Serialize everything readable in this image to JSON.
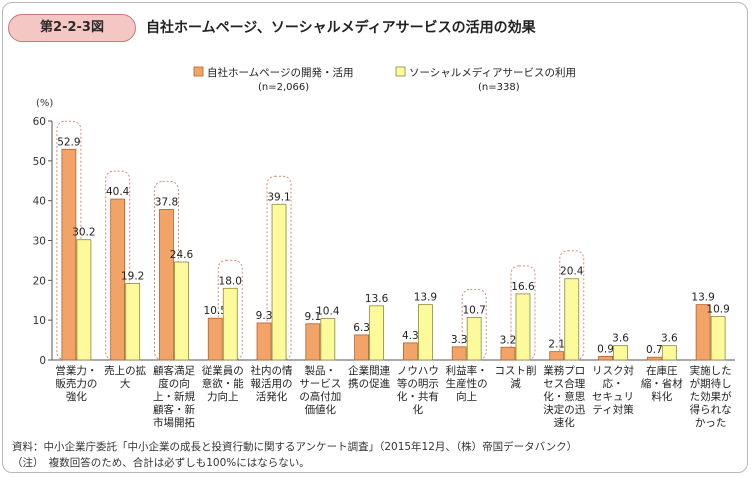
{
  "header": {
    "figure_label": "第2-2-3図",
    "title": "自社ホームページ、ソーシャルメディアサービスの活用の効果"
  },
  "footer": {
    "source": "資料：中小企業庁委託「中小企業の成長と投資行動に関するアンケート調査」（2015年12月、（株）帝国データバンク）",
    "note": "（注）　複数回答のため、合計は必ずしも100%にはならない。"
  },
  "colors": {
    "series1": "#f2a468",
    "series1_stroke": "#b0622a",
    "series2": "#fdfa9c",
    "series2_stroke": "#8a8a3a",
    "highlight": "#d88a78"
  },
  "chart_data": {
    "type": "bar",
    "yunit": "(%)",
    "ylim": [
      0,
      60
    ],
    "yticks": [
      "0",
      "10",
      "20",
      "30",
      "40",
      "50",
      "60"
    ],
    "categories": [
      [
        "営業力・",
        "販売力の",
        "強化"
      ],
      [
        "売上の拡",
        "大"
      ],
      [
        "顧客満足",
        "度の向",
        "上・新規",
        "顧客・新",
        "市場開拓"
      ],
      [
        "従業員の",
        "意欲・能",
        "力向上"
      ],
      [
        "社内の情",
        "報活用の",
        "活発化"
      ],
      [
        "製品・",
        "サービス",
        "の高付加",
        "価値化"
      ],
      [
        "企業間連",
        "携の促進"
      ],
      [
        "ノウハウ",
        "等の明示",
        "化・共有",
        "化"
      ],
      [
        "利益率・",
        "生産性の",
        "向上"
      ],
      [
        "コスト削",
        "減"
      ],
      [
        "業務プロ",
        "セス合理",
        "化・意思",
        "決定の迅",
        "速化"
      ],
      [
        "リスク対",
        "応・",
        "セキュリ",
        "ティ対策"
      ],
      [
        "在庫圧",
        "縮・省材",
        "料化"
      ],
      [
        "実施した",
        "が期待し",
        "た効果が",
        "得られな",
        "かった"
      ]
    ],
    "series": [
      {
        "name": "自社ホームページの開発・活用",
        "n": "(n=2,066)",
        "values": [
          52.9,
          40.4,
          37.8,
          10.5,
          9.3,
          9.1,
          6.3,
          4.3,
          3.3,
          3.2,
          2.1,
          0.9,
          0.7,
          13.9
        ],
        "labels": [
          "52.9",
          "40.4",
          "37.8",
          "10.5",
          "9.3",
          "9.1",
          "6.3",
          "4.3",
          "3.3",
          "3.2",
          "2.1",
          "0.9",
          "0.7",
          "13.9"
        ]
      },
      {
        "name": "ソーシャルメディアサービスの利用",
        "n": "(n=338)",
        "values": [
          30.2,
          19.2,
          24.6,
          18.0,
          39.1,
          10.4,
          13.6,
          13.9,
          10.7,
          16.6,
          20.4,
          3.6,
          3.6,
          10.9
        ],
        "labels": [
          "30.2",
          "19.2",
          "24.6",
          "18.0",
          "39.1",
          "10.4",
          "13.6",
          "13.9",
          "10.7",
          "16.6",
          "20.4",
          "3.6",
          "3.6",
          "10.9"
        ]
      }
    ],
    "highlight_series_by_category": [
      0,
      0,
      0,
      1,
      1,
      null,
      null,
      null,
      1,
      1,
      1,
      null,
      null,
      null
    ]
  }
}
